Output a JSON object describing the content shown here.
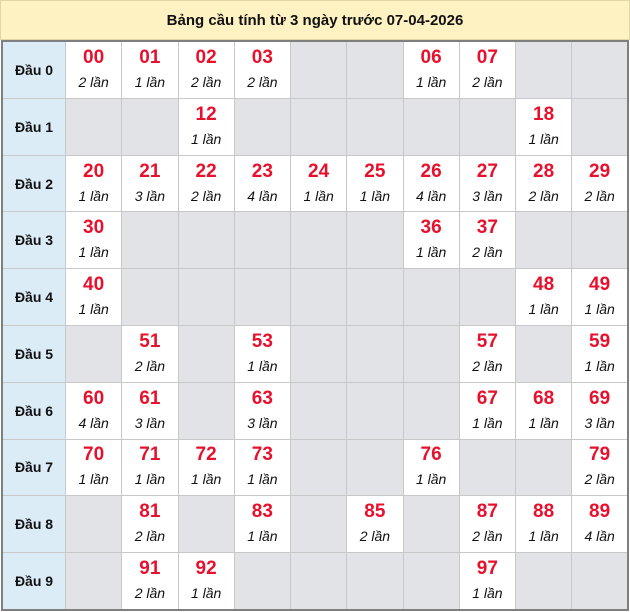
{
  "title": "Bảng cầu tính từ 3 ngày trước 07-04-2026",
  "colors": {
    "number": "#e8112d",
    "header_bg": "#dcecf7",
    "empty_bg": "#e1e3e6",
    "title_bg": "#fff2c2"
  },
  "count_suffix": "lần",
  "rows": [
    {
      "label": "Đầu 0",
      "cells": [
        [
          "00",
          "2 lần"
        ],
        [
          "01",
          "1 lần"
        ],
        [
          "02",
          "2 lần"
        ],
        [
          "03",
          "2 lần"
        ],
        null,
        null,
        [
          "06",
          "1 lần"
        ],
        [
          "07",
          "2 lần"
        ],
        null,
        null
      ]
    },
    {
      "label": "Đầu 1",
      "cells": [
        null,
        null,
        [
          "12",
          "1 lần"
        ],
        null,
        null,
        null,
        null,
        null,
        [
          "18",
          "1 lần"
        ],
        null
      ]
    },
    {
      "label": "Đầu 2",
      "cells": [
        [
          "20",
          "1 lần"
        ],
        [
          "21",
          "3 lần"
        ],
        [
          "22",
          "2 lần"
        ],
        [
          "23",
          "4 lần"
        ],
        [
          "24",
          "1 lần"
        ],
        [
          "25",
          "1 lần"
        ],
        [
          "26",
          "4 lần"
        ],
        [
          "27",
          "3 lần"
        ],
        [
          "28",
          "2 lần"
        ],
        [
          "29",
          "2 lần"
        ]
      ]
    },
    {
      "label": "Đầu 3",
      "cells": [
        [
          "30",
          "1 lần"
        ],
        null,
        null,
        null,
        null,
        null,
        [
          "36",
          "1 lần"
        ],
        [
          "37",
          "2 lần"
        ],
        null,
        null
      ]
    },
    {
      "label": "Đầu 4",
      "cells": [
        [
          "40",
          "1 lần"
        ],
        null,
        null,
        null,
        null,
        null,
        null,
        null,
        [
          "48",
          "1 lần"
        ],
        [
          "49",
          "1 lần"
        ]
      ]
    },
    {
      "label": "Đầu 5",
      "cells": [
        null,
        [
          "51",
          "2 lần"
        ],
        null,
        [
          "53",
          "1 lần"
        ],
        null,
        null,
        null,
        [
          "57",
          "2 lần"
        ],
        null,
        [
          "59",
          "1 lần"
        ]
      ]
    },
    {
      "label": "Đầu 6",
      "cells": [
        [
          "60",
          "4 lần"
        ],
        [
          "61",
          "3 lần"
        ],
        null,
        [
          "63",
          "3 lần"
        ],
        null,
        null,
        null,
        [
          "67",
          "1 lần"
        ],
        [
          "68",
          "1 lần"
        ],
        [
          "69",
          "3 lần"
        ]
      ]
    },
    {
      "label": "Đầu 7",
      "cells": [
        [
          "70",
          "1 lần"
        ],
        [
          "71",
          "1 lần"
        ],
        [
          "72",
          "1 lần"
        ],
        [
          "73",
          "1 lần"
        ],
        null,
        null,
        [
          "76",
          "1 lần"
        ],
        null,
        null,
        [
          "79",
          "2 lần"
        ]
      ]
    },
    {
      "label": "Đầu 8",
      "cells": [
        null,
        [
          "81",
          "2 lần"
        ],
        null,
        [
          "83",
          "1 lần"
        ],
        null,
        [
          "85",
          "2 lần"
        ],
        null,
        [
          "87",
          "2 lần"
        ],
        [
          "88",
          "1 lần"
        ],
        [
          "89",
          "4 lần"
        ]
      ]
    },
    {
      "label": "Đầu 9",
      "cells": [
        null,
        [
          "91",
          "2 lần"
        ],
        [
          "92",
          "1 lần"
        ],
        null,
        null,
        null,
        null,
        [
          "97",
          "1 lần"
        ],
        null,
        null
      ]
    }
  ]
}
